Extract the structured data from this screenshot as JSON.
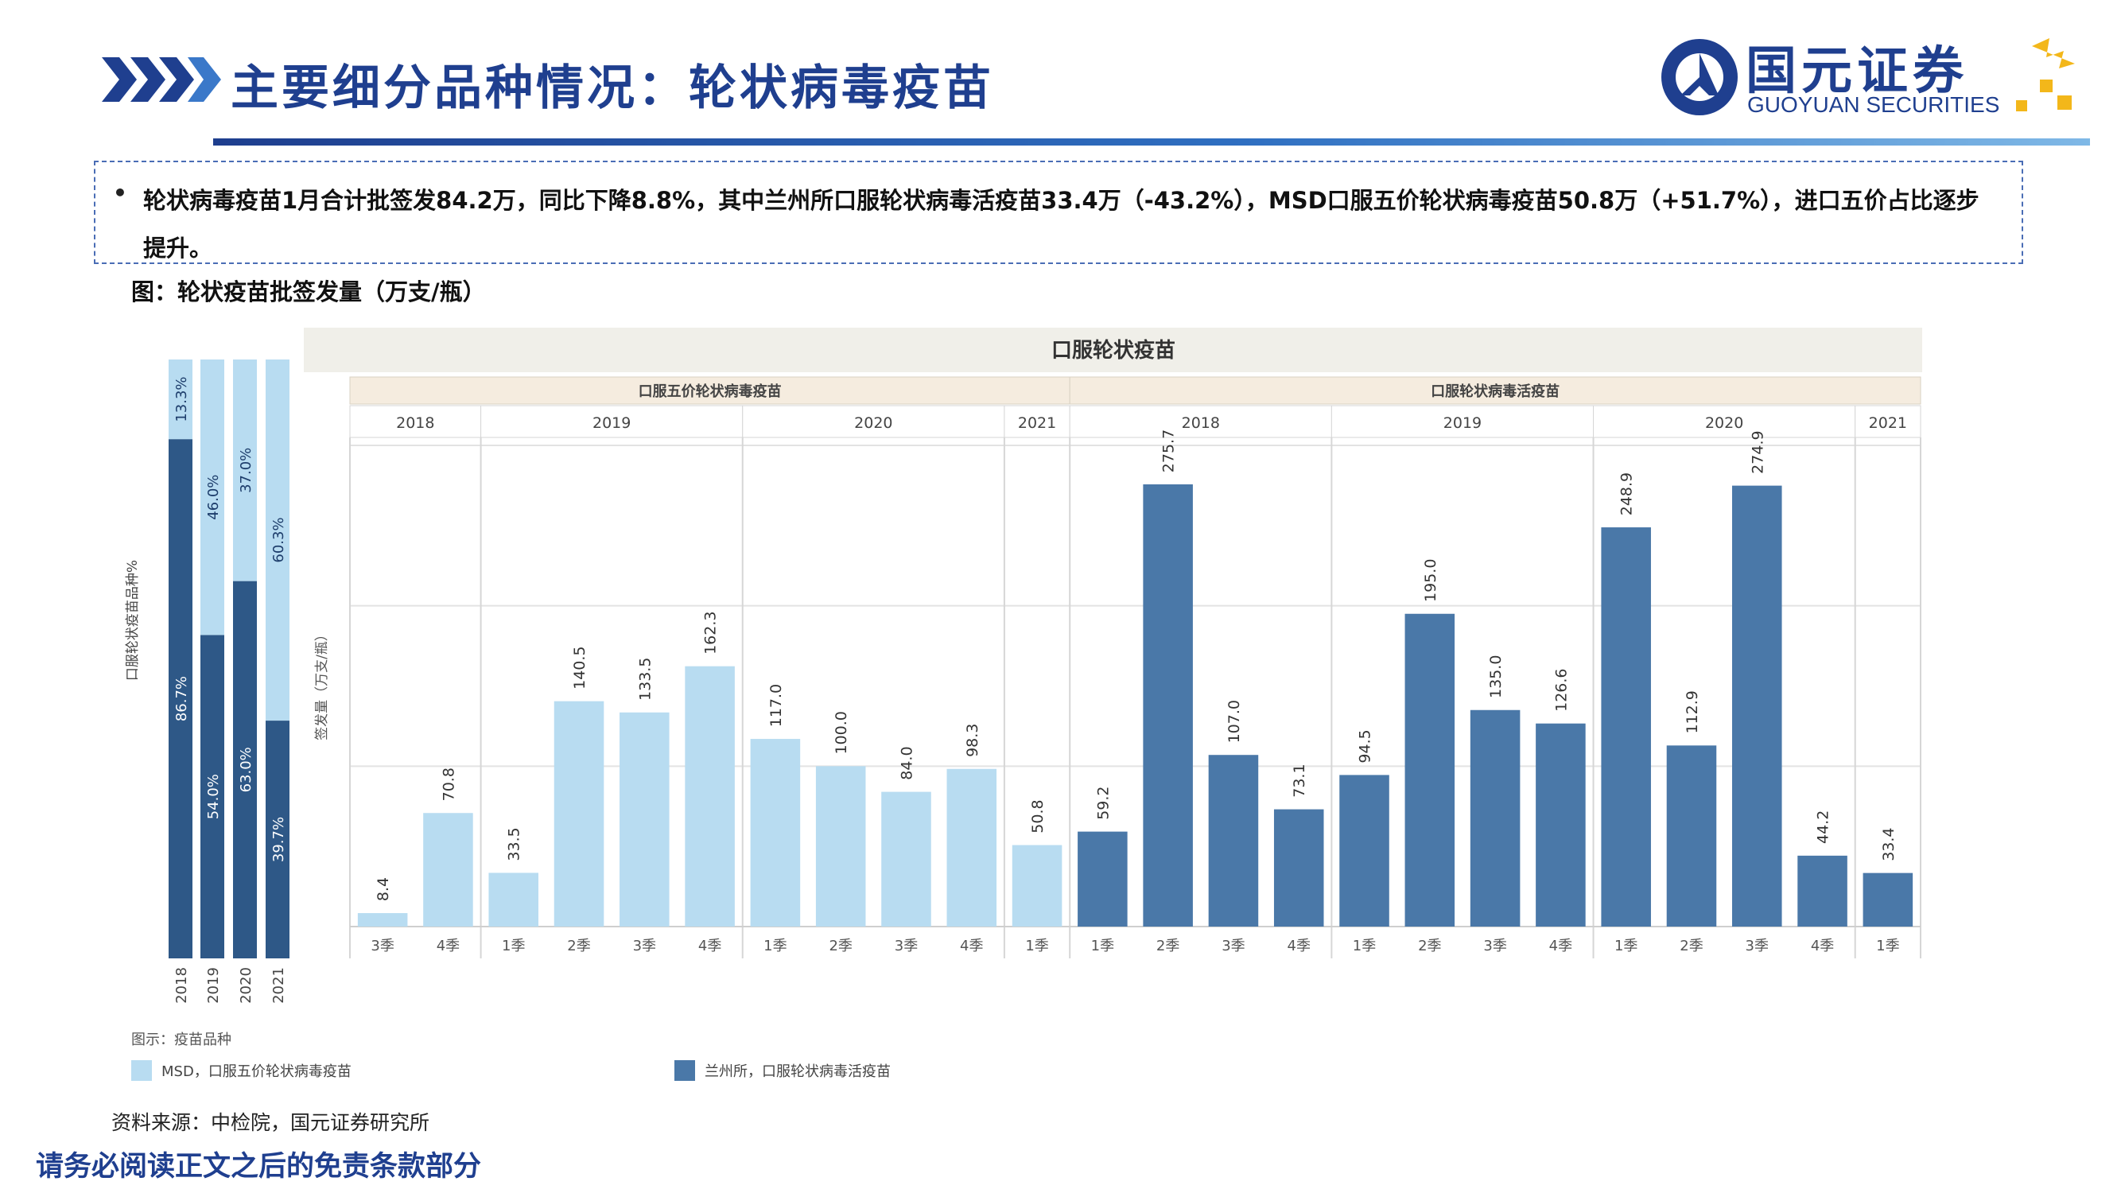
{
  "header": {
    "title": "主要细分品种情况：轮状病毒疫苗",
    "logo_cn": "国元证券",
    "logo_en": "GUOYUAN SECURITIES"
  },
  "summary": {
    "bullet": "•",
    "text": "轮状病毒疫苗1月合计批签发84.2万，同比下降8.8%，其中兰州所口服轮状病毒活疫苗33.4万（-43.2%），MSD口服五价轮状病毒疫苗50.8万（+51.7%），进口五价占比逐步提升。"
  },
  "figure_caption": "图：轮状疫苗批签发量（万支/瓶）",
  "source": "资料来源：中检院，国元证券研究所",
  "disclaimer": "请务必阅读正文之后的免责条款部分",
  "colors": {
    "msd": "#b8dcf1",
    "lanzhou": "#4a78a8",
    "header_blue": "#1f3f8f",
    "band_bg": "#f0efe9",
    "group_bg": "#f5ecdf",
    "logo_gold": "#f3b71a"
  },
  "chart_data": [
    {
      "type": "bar",
      "stacked": true,
      "percent": true,
      "ylabel": "口服轮状疫苗品种%",
      "categories": [
        "2018",
        "2019",
        "2020",
        "2021"
      ],
      "series": [
        {
          "name": "兰州所，口服轮状病毒活疫苗",
          "values": [
            86.7,
            54.0,
            63.0,
            39.7
          ],
          "labels": [
            "86.7%",
            "54.0%",
            "63.0%",
            "39.7%"
          ],
          "color": "#2e5887"
        },
        {
          "name": "MSD，口服五价轮状病毒疫苗",
          "values": [
            13.3,
            46.0,
            37.0,
            60.3
          ],
          "labels": [
            "13.3%",
            "46.0%",
            "37.0%",
            "60.3%"
          ],
          "color": "#b8dcf1"
        }
      ],
      "ylim": [
        0,
        100
      ]
    },
    {
      "type": "bar",
      "title": "口服轮状疫苗",
      "ylabel": "签发量（万支/瓶）",
      "ylim": [
        0,
        300
      ],
      "grid": true,
      "groups": [
        {
          "name": "口服五价轮状病毒疫苗",
          "series": "MSD，口服五价轮状病毒疫苗",
          "years": [
            {
              "year": "2018",
              "quarters": [
                "3季",
                "4季"
              ],
              "values": [
                8.4,
                70.8
              ]
            },
            {
              "year": "2019",
              "quarters": [
                "1季",
                "2季",
                "3季",
                "4季"
              ],
              "values": [
                33.5,
                140.5,
                133.5,
                162.3
              ]
            },
            {
              "year": "2020",
              "quarters": [
                "1季",
                "2季",
                "3季",
                "4季"
              ],
              "values": [
                117.0,
                100.0,
                84.0,
                98.3
              ]
            },
            {
              "year": "2021",
              "quarters": [
                "1季"
              ],
              "values": [
                50.8
              ]
            }
          ]
        },
        {
          "name": "口服轮状病毒活疫苗",
          "series": "兰州所，口服轮状病毒活疫苗",
          "years": [
            {
              "year": "2018",
              "quarters": [
                "1季",
                "2季",
                "3季",
                "4季"
              ],
              "values": [
                59.2,
                275.7,
                107.0,
                73.1
              ]
            },
            {
              "year": "2019",
              "quarters": [
                "1季",
                "2季",
                "3季",
                "4季"
              ],
              "values": [
                94.5,
                195.0,
                135.0,
                126.6
              ]
            },
            {
              "year": "2020",
              "quarters": [
                "1季",
                "2季",
                "3季",
                "4季"
              ],
              "values": [
                248.9,
                112.9,
                274.9,
                44.2
              ]
            },
            {
              "year": "2021",
              "quarters": [
                "1季"
              ],
              "values": [
                33.4
              ]
            }
          ]
        }
      ]
    }
  ],
  "legend": {
    "title": "图示：疫苗品种",
    "items": [
      {
        "label": "MSD，口服五价轮状病毒疫苗",
        "color": "#b8dcf1"
      },
      {
        "label": "兰州所，口服轮状病毒活疫苗",
        "color": "#4a78a8"
      }
    ]
  }
}
